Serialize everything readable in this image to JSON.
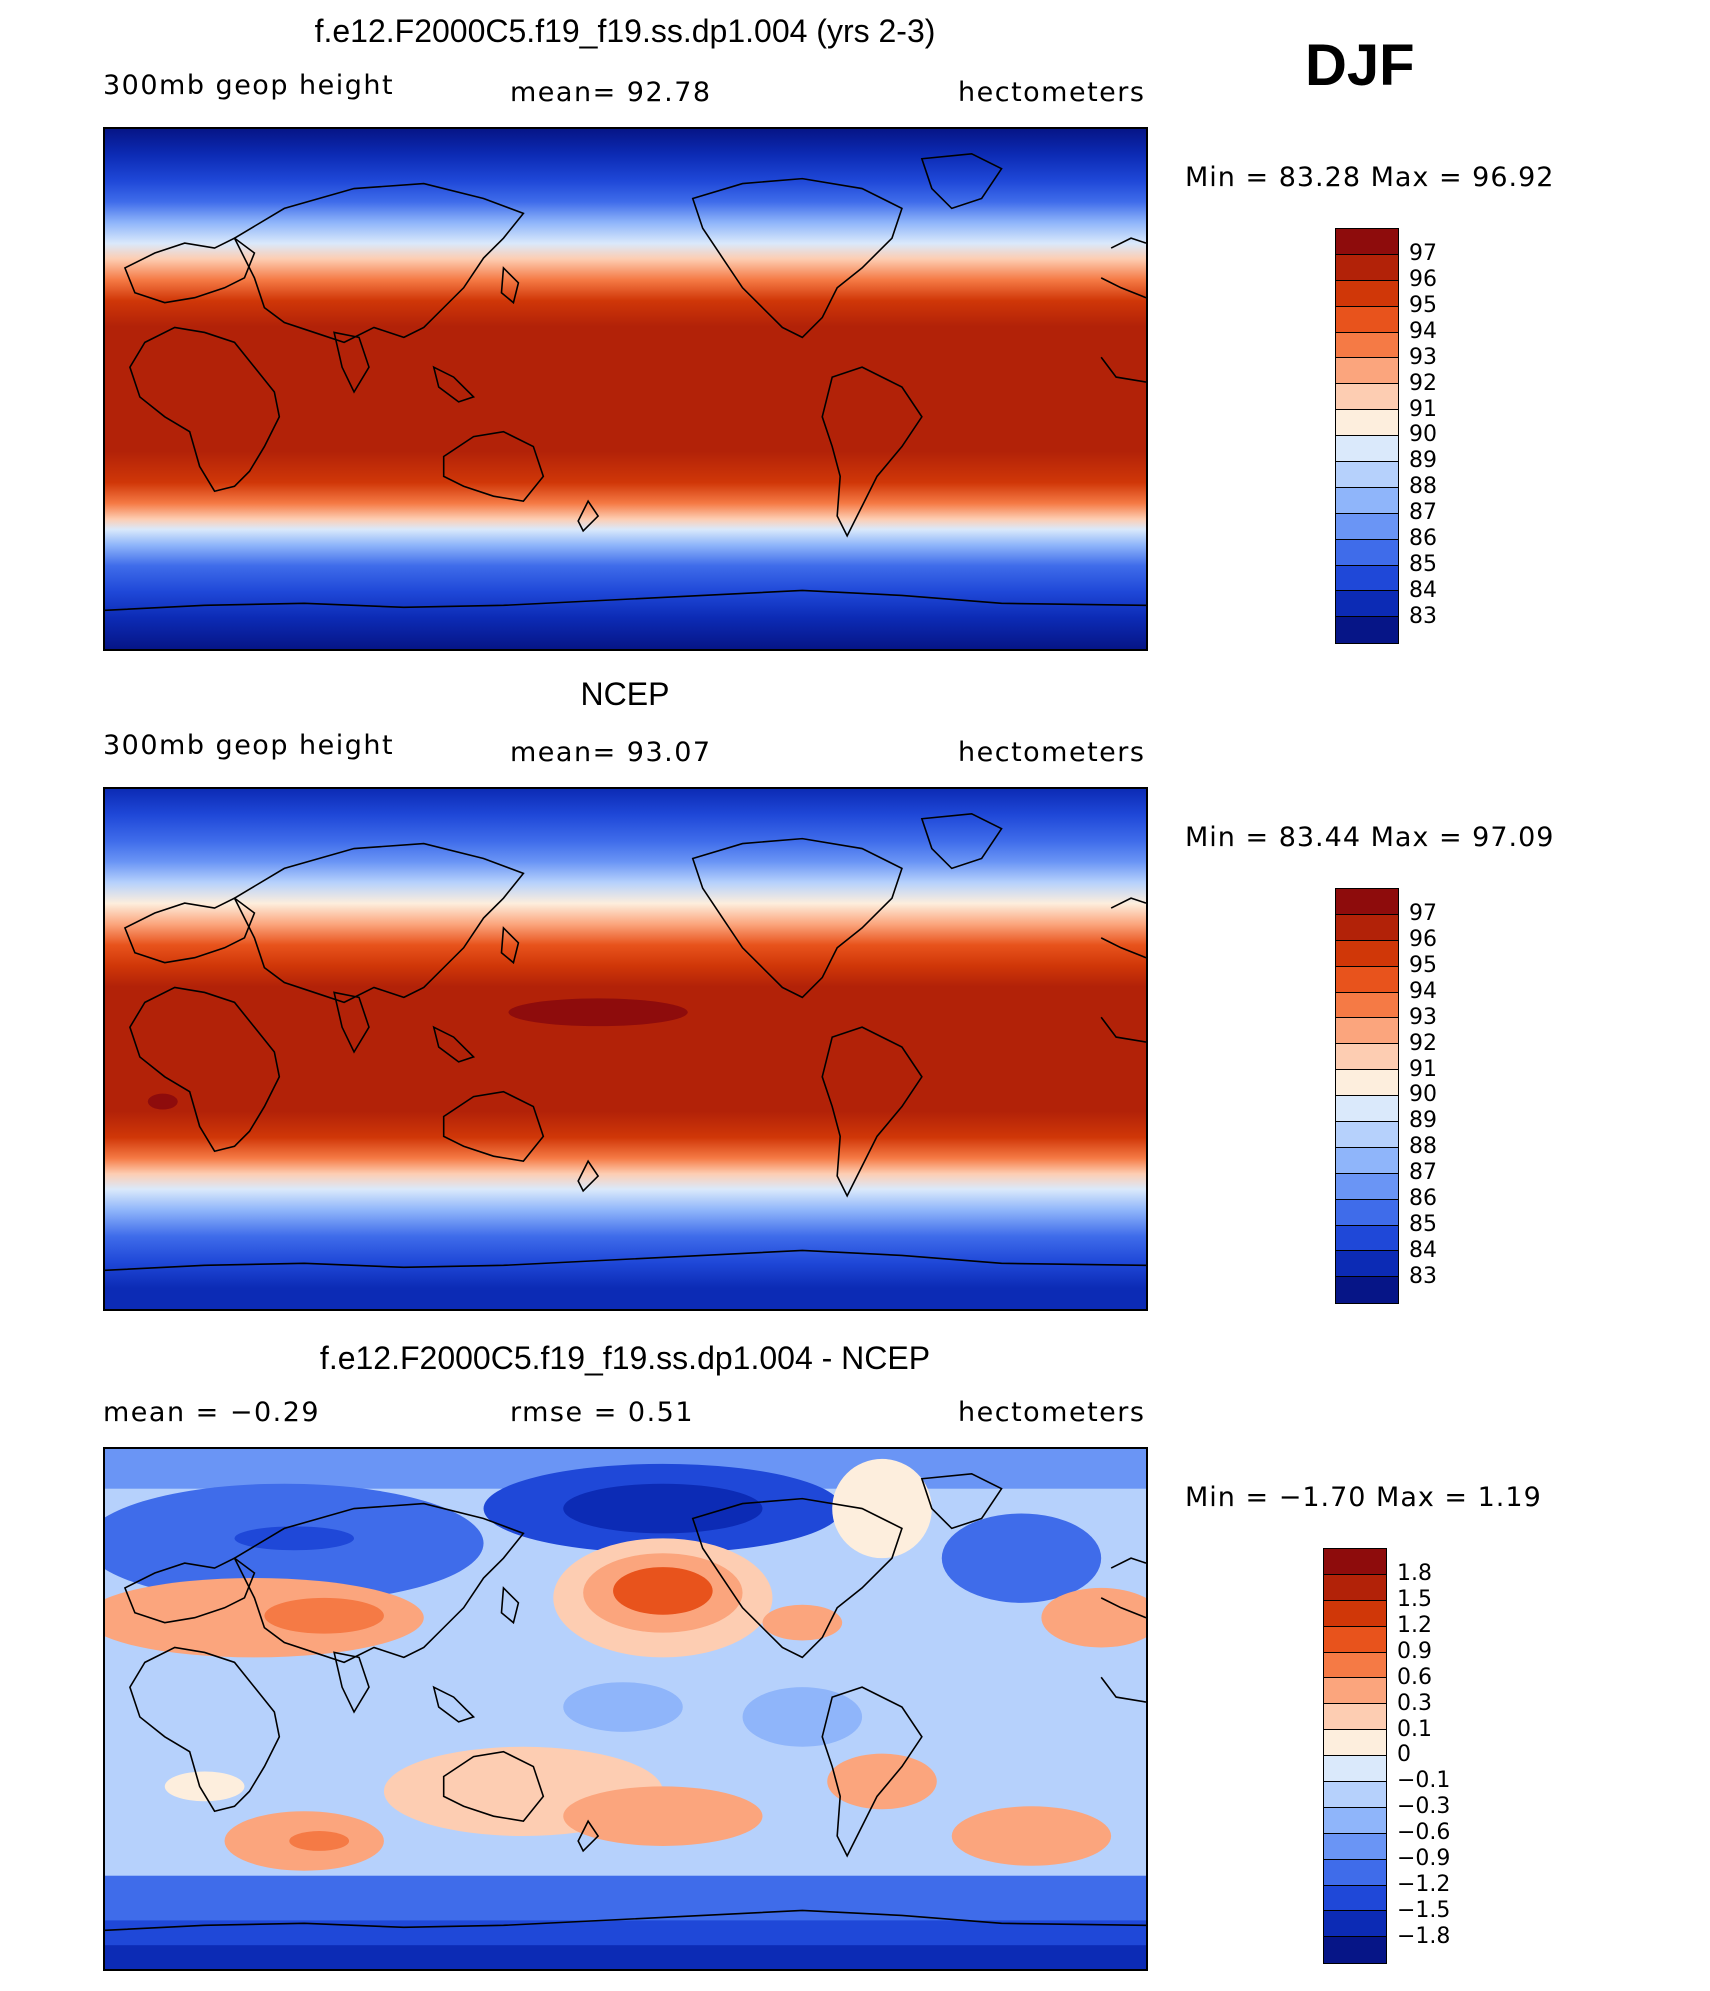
{
  "season": "DJF",
  "panels": [
    {
      "title": "f.e12.F2000C5.f19_f19.ss.dp1.004 (yrs 2-3)",
      "left_label": "300mb geop height",
      "center_label": "mean=   92.78",
      "right_label": "hectometers",
      "minmax": "Min =   83.28 Max =   96.92",
      "min": 83.28,
      "max": 96.92,
      "mean": 92.78,
      "colorbar": {
        "labels": [
          "97",
          "96",
          "95",
          "94",
          "93",
          "92",
          "91",
          "90",
          "89",
          "88",
          "87",
          "86",
          "85",
          "84",
          "83"
        ],
        "colors": [
          "#8e0c0c",
          "#b22208",
          "#d03708",
          "#e8531c",
          "#f57a45",
          "#fba57d",
          "#fdcdb2",
          "#fdeedd",
          "#dae9fb",
          "#b6d1fc",
          "#8fb5fa",
          "#6a95f5",
          "#3f6cea",
          "#1f48d8",
          "#0c2bb5",
          "#061587"
        ]
      }
    },
    {
      "title": "NCEP",
      "left_label": "300mb geop height",
      "center_label": "mean=   93.07",
      "right_label": "hectometers",
      "minmax": "Min =   83.44 Max =   97.09",
      "min": 83.44,
      "max": 97.09,
      "mean": 93.07,
      "colorbar": {
        "labels": [
          "97",
          "96",
          "95",
          "94",
          "93",
          "92",
          "91",
          "90",
          "89",
          "88",
          "87",
          "86",
          "85",
          "84",
          "83"
        ],
        "colors": [
          "#8e0c0c",
          "#b22208",
          "#d03708",
          "#e8531c",
          "#f57a45",
          "#fba57d",
          "#fdcdb2",
          "#fdeedd",
          "#dae9fb",
          "#b6d1fc",
          "#8fb5fa",
          "#6a95f5",
          "#3f6cea",
          "#1f48d8",
          "#0c2bb5",
          "#061587"
        ]
      }
    },
    {
      "title": "f.e12.F2000C5.f19_f19.ss.dp1.004 - NCEP",
      "left_label": "mean =   −0.29",
      "center_label": "rmse =    0.51",
      "right_label": "hectometers",
      "minmax": "Min =  −1.70 Max =    1.19",
      "min": -1.7,
      "max": 1.19,
      "mean": -0.29,
      "rmse": 0.51,
      "colorbar": {
        "labels": [
          "1.8",
          "1.5",
          "1.2",
          "0.9",
          "0.6",
          "0.3",
          "0.1",
          "0",
          "−0.1",
          "−0.3",
          "−0.6",
          "−0.9",
          "−1.2",
          "−1.5",
          "−1.8"
        ],
        "colors": [
          "#8e0c0c",
          "#b22208",
          "#d03708",
          "#e8531c",
          "#f57a45",
          "#fba57d",
          "#fdcdb2",
          "#fdeedd",
          "#dae9fb",
          "#b6d1fc",
          "#8fb5fa",
          "#6a95f5",
          "#3f6cea",
          "#1f48d8",
          "#0c2bb5",
          "#061587"
        ]
      }
    }
  ]
}
